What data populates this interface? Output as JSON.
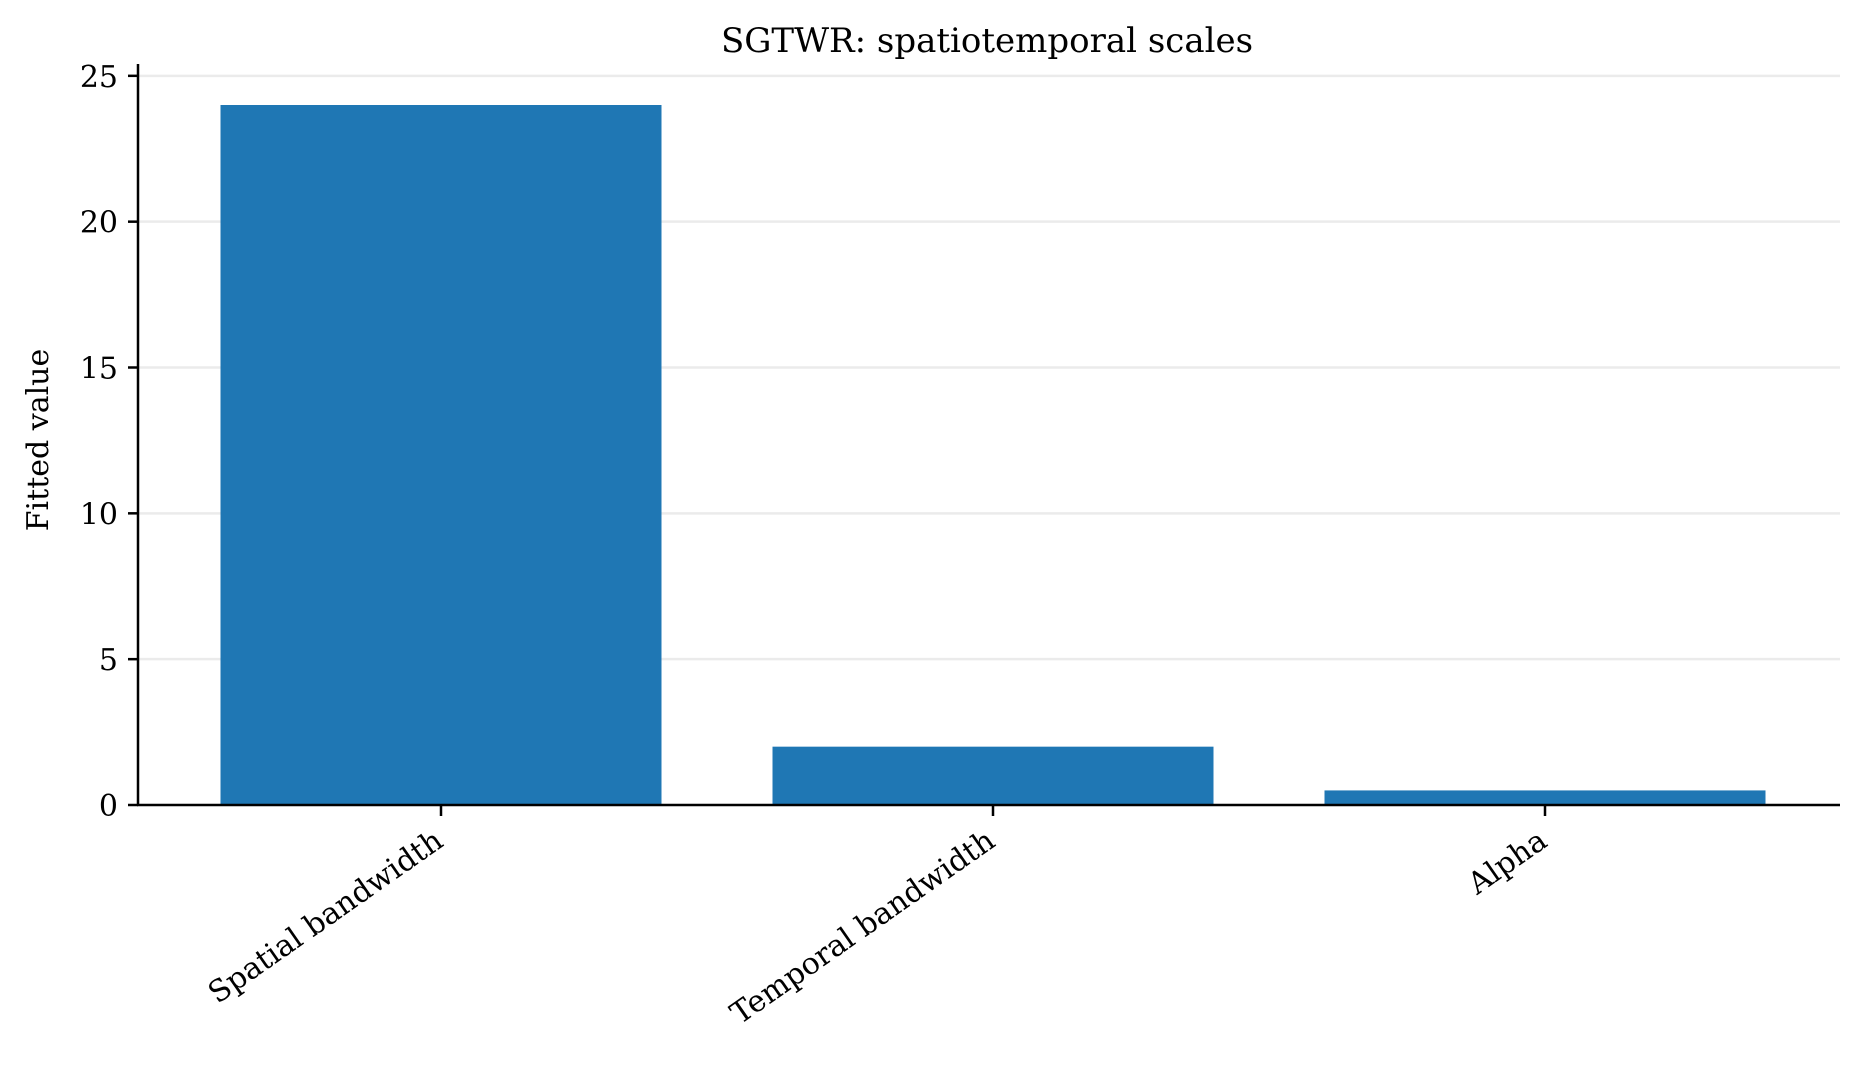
{
  "chart_data": {
    "type": "bar",
    "title": "SGTWR: spatiotemporal scales",
    "xlabel": "",
    "ylabel": "Fitted value",
    "categories": [
      "Spatial bandwidth",
      "Temporal bandwidth",
      "Alpha"
    ],
    "values": [
      24,
      2,
      0.5
    ],
    "ylim": [
      0,
      25.2
    ],
    "yticks": [
      0,
      5,
      10,
      15,
      20,
      25
    ],
    "xtick_rotation_deg": 35,
    "grid": "y-axis only, light gray",
    "legend": "none",
    "colors": {
      "bar": "#1f77b4",
      "grid": "#ebebeb",
      "axis": "#000000"
    }
  }
}
